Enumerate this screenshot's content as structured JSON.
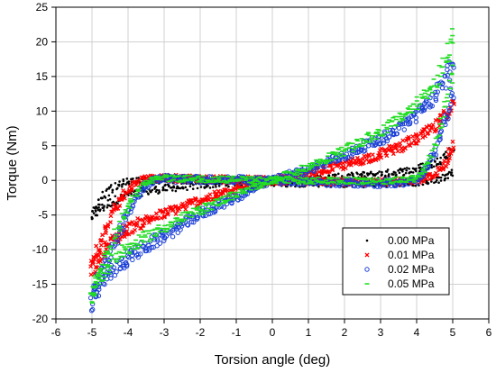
{
  "chart_data": {
    "type": "scatter",
    "xlabel": "Torsion angle (deg)",
    "ylabel": "Torque (Nm)",
    "xlim": [
      -6,
      6
    ],
    "ylim": [
      -20,
      25
    ],
    "xticks": [
      -6,
      -5,
      -4,
      -3,
      -2,
      -1,
      0,
      1,
      2,
      3,
      4,
      5,
      6
    ],
    "yticks": [
      -20,
      -15,
      -10,
      -5,
      0,
      5,
      10,
      15,
      20,
      25
    ],
    "grid": true,
    "legend_position": "bottom-right",
    "series": [
      {
        "name": "0.00 MPa",
        "color": "#000000",
        "marker": "dot",
        "loading": [
          [
            -5.0,
            -5.2
          ],
          [
            -4.8,
            -4.2
          ],
          [
            -4.5,
            -3.2
          ],
          [
            -4.2,
            -2.5
          ],
          [
            -4.0,
            -2.0
          ],
          [
            -3.5,
            -1.6
          ],
          [
            -3.0,
            -1.2
          ],
          [
            -2.5,
            -0.9
          ],
          [
            -2.0,
            -0.7
          ],
          [
            -1.5,
            -0.5
          ],
          [
            -1.0,
            -0.3
          ],
          [
            -0.5,
            -0.15
          ],
          [
            0.0,
            0.0
          ],
          [
            0.5,
            0.1
          ],
          [
            1.0,
            0.2
          ],
          [
            1.5,
            0.35
          ],
          [
            2.0,
            0.5
          ],
          [
            2.5,
            0.7
          ],
          [
            3.0,
            0.9
          ],
          [
            3.5,
            1.2
          ],
          [
            4.0,
            1.6
          ],
          [
            4.5,
            2.5
          ],
          [
            4.8,
            3.5
          ],
          [
            5.0,
            4.5
          ]
        ],
        "unloading": [
          [
            5.0,
            1.2
          ],
          [
            4.8,
            0.5
          ],
          [
            4.5,
            0.0
          ],
          [
            4.0,
            -0.3
          ],
          [
            3.5,
            -0.4
          ],
          [
            3.0,
            -0.45
          ],
          [
            2.0,
            -0.5
          ],
          [
            1.0,
            -0.45
          ],
          [
            0.0,
            -0.3
          ],
          [
            -1.0,
            -0.15
          ],
          [
            -2.0,
            0.0
          ],
          [
            -2.5,
            0.05
          ],
          [
            -3.0,
            0.05
          ],
          [
            -3.5,
            0.05
          ],
          [
            -4.0,
            -0.1
          ],
          [
            -4.3,
            -0.6
          ],
          [
            -4.6,
            -1.8
          ],
          [
            -4.8,
            -3.0
          ],
          [
            -5.0,
            -5.0
          ]
        ]
      },
      {
        "name": "0.01 MPa",
        "color": "#ff0000",
        "marker": "x",
        "loading": [
          [
            -5.0,
            -13.0
          ],
          [
            -4.8,
            -11.0
          ],
          [
            -4.5,
            -9.0
          ],
          [
            -4.2,
            -7.8
          ],
          [
            -4.0,
            -7.0
          ],
          [
            -3.5,
            -5.8
          ],
          [
            -3.0,
            -4.8
          ],
          [
            -2.5,
            -3.8
          ],
          [
            -2.0,
            -2.9
          ],
          [
            -1.5,
            -2.1
          ],
          [
            -1.0,
            -1.4
          ],
          [
            -0.5,
            -0.7
          ],
          [
            0.0,
            0.0
          ],
          [
            0.5,
            0.5
          ],
          [
            1.0,
            1.0
          ],
          [
            1.5,
            1.6
          ],
          [
            2.0,
            2.2
          ],
          [
            2.5,
            3.0
          ],
          [
            3.0,
            3.8
          ],
          [
            3.5,
            4.8
          ],
          [
            4.0,
            6.0
          ],
          [
            4.5,
            7.5
          ],
          [
            4.8,
            9.5
          ],
          [
            5.0,
            11.0
          ]
        ],
        "unloading": [
          [
            5.0,
            5.0
          ],
          [
            4.8,
            2.5
          ],
          [
            4.5,
            1.0
          ],
          [
            4.2,
            0.2
          ],
          [
            4.0,
            0.0
          ],
          [
            3.5,
            -0.2
          ],
          [
            3.0,
            -0.25
          ],
          [
            2.0,
            -0.2
          ],
          [
            1.0,
            -0.1
          ],
          [
            0.0,
            0.0
          ],
          [
            -1.0,
            0.1
          ],
          [
            -2.0,
            0.2
          ],
          [
            -3.0,
            0.3
          ],
          [
            -3.5,
            0.2
          ],
          [
            -3.8,
            -0.5
          ],
          [
            -4.1,
            -2.0
          ],
          [
            -4.4,
            -4.5
          ],
          [
            -4.7,
            -8.0
          ],
          [
            -5.0,
            -12.5
          ]
        ]
      },
      {
        "name": "0.02 MPa",
        "color": "#1a3fd6",
        "marker": "circle",
        "loading": [
          [
            -5.0,
            -17.5
          ],
          [
            -4.8,
            -15.5
          ],
          [
            -4.5,
            -13.5
          ],
          [
            -4.2,
            -12.0
          ],
          [
            -4.0,
            -11.2
          ],
          [
            -3.5,
            -9.5
          ],
          [
            -3.0,
            -8.0
          ],
          [
            -2.5,
            -6.4
          ],
          [
            -2.0,
            -4.9
          ],
          [
            -1.5,
            -3.6
          ],
          [
            -1.0,
            -2.4
          ],
          [
            -0.5,
            -1.2
          ],
          [
            0.0,
            0.0
          ],
          [
            0.5,
            0.8
          ],
          [
            1.0,
            1.6
          ],
          [
            1.5,
            2.6
          ],
          [
            2.0,
            3.6
          ],
          [
            2.5,
            4.8
          ],
          [
            3.0,
            6.0
          ],
          [
            3.5,
            7.5
          ],
          [
            4.0,
            9.5
          ],
          [
            4.5,
            12.0
          ],
          [
            4.8,
            14.5
          ],
          [
            5.0,
            17.0
          ]
        ],
        "unloading": [
          [
            5.0,
            13.0
          ],
          [
            4.8,
            9.0
          ],
          [
            4.6,
            5.5
          ],
          [
            4.4,
            3.0
          ],
          [
            4.2,
            1.2
          ],
          [
            4.0,
            0.0
          ],
          [
            3.5,
            -0.3
          ],
          [
            3.0,
            -0.4
          ],
          [
            2.0,
            -0.3
          ],
          [
            1.0,
            -0.2
          ],
          [
            0.0,
            0.0
          ],
          [
            -1.0,
            0.1
          ],
          [
            -2.0,
            0.15
          ],
          [
            -3.0,
            0.2
          ],
          [
            -3.3,
            0.0
          ],
          [
            -3.6,
            -1.2
          ],
          [
            -3.9,
            -3.5
          ],
          [
            -4.2,
            -7.0
          ],
          [
            -4.6,
            -12.0
          ],
          [
            -5.0,
            -17.0
          ]
        ]
      },
      {
        "name": "0.05 MPa",
        "color": "#22dd22",
        "marker": "dash",
        "loading": [
          [
            -5.0,
            -16.5
          ],
          [
            -4.8,
            -14.0
          ],
          [
            -4.5,
            -12.0
          ],
          [
            -4.2,
            -10.5
          ],
          [
            -4.0,
            -9.8
          ],
          [
            -3.5,
            -8.2
          ],
          [
            -3.0,
            -6.8
          ],
          [
            -2.5,
            -5.5
          ],
          [
            -2.0,
            -4.3
          ],
          [
            -1.5,
            -3.1
          ],
          [
            -1.0,
            -2.0
          ],
          [
            -0.5,
            -1.0
          ],
          [
            0.0,
            0.0
          ],
          [
            0.5,
            1.0
          ],
          [
            1.0,
            2.0
          ],
          [
            1.5,
            3.1
          ],
          [
            2.0,
            4.3
          ],
          [
            2.5,
            5.6
          ],
          [
            3.0,
            7.0
          ],
          [
            3.5,
            8.8
          ],
          [
            4.0,
            11.0
          ],
          [
            4.5,
            14.0
          ],
          [
            4.8,
            17.0
          ],
          [
            5.0,
            20.5
          ]
        ],
        "unloading": [
          [
            5.0,
            15.5
          ],
          [
            4.8,
            10.5
          ],
          [
            4.6,
            6.5
          ],
          [
            4.4,
            3.5
          ],
          [
            4.2,
            1.5
          ],
          [
            4.0,
            0.3
          ],
          [
            3.5,
            0.0
          ],
          [
            3.0,
            -0.1
          ],
          [
            2.0,
            -0.05
          ],
          [
            1.0,
            0.0
          ],
          [
            0.0,
            0.0
          ],
          [
            -1.0,
            0.1
          ],
          [
            -2.0,
            0.2
          ],
          [
            -3.0,
            0.3
          ],
          [
            -3.3,
            0.2
          ],
          [
            -3.6,
            -0.8
          ],
          [
            -3.9,
            -2.8
          ],
          [
            -4.2,
            -6.0
          ],
          [
            -4.6,
            -11.0
          ],
          [
            -5.0,
            -16.0
          ]
        ]
      }
    ]
  }
}
